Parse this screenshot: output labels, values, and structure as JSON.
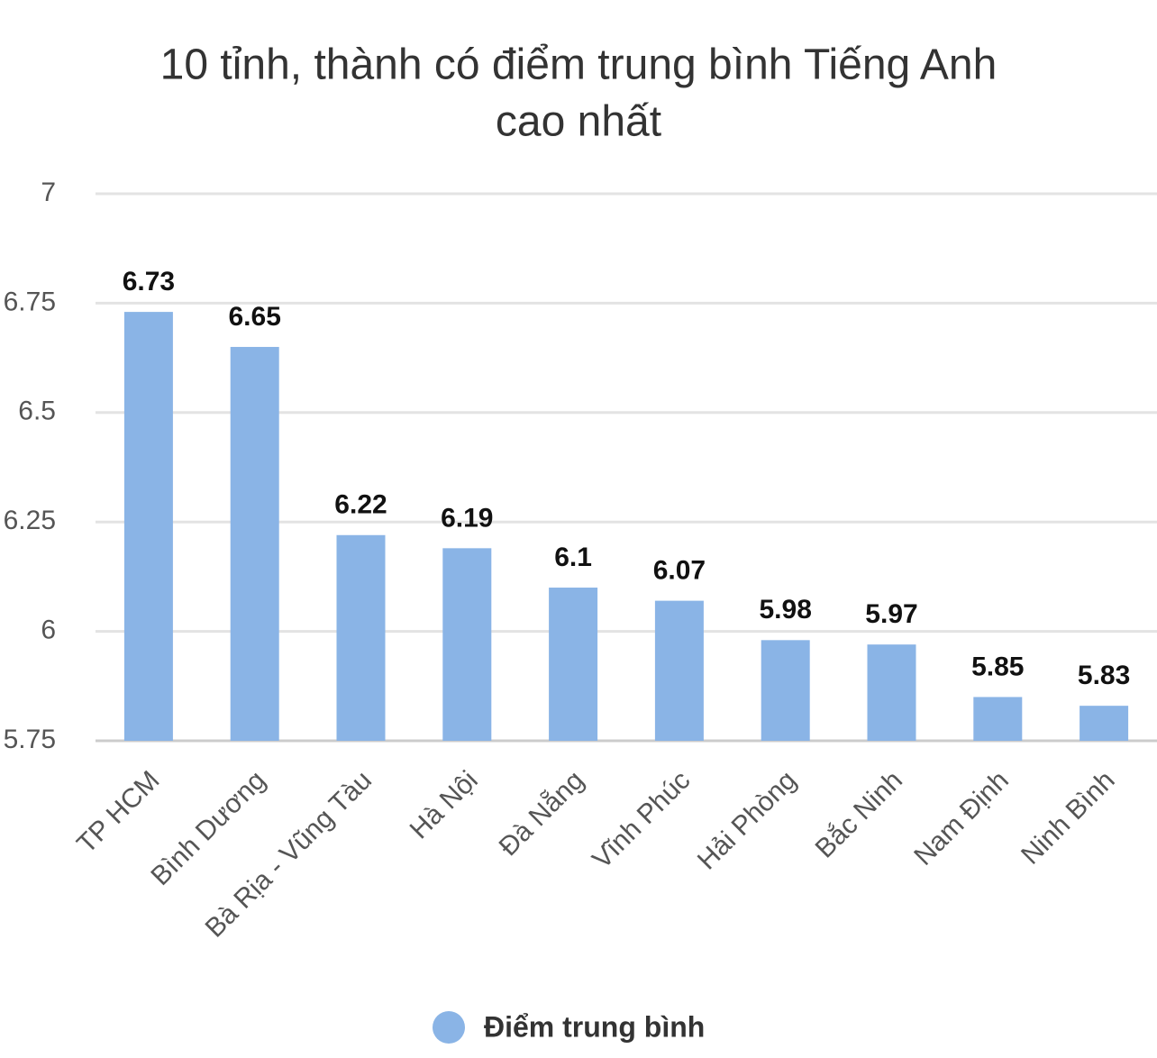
{
  "chart_data": {
    "type": "bar",
    "title": [
      "10 tỉnh, thành có điểm trung bình Tiếng Anh",
      "cao nhất"
    ],
    "categories": [
      "TP HCM",
      "Bình Dương",
      "Bà Rịa - Vũng Tàu",
      "Hà Nội",
      "Đà Nẵng",
      "Vĩnh Phúc",
      "Hải Phòng",
      "Bắc Ninh",
      "Nam Định",
      "Ninh Bình"
    ],
    "series": [
      {
        "name": "Điểm trung bình",
        "color": "#8ab4e6",
        "values": [
          6.73,
          6.65,
          6.22,
          6.19,
          6.1,
          6.07,
          5.98,
          5.97,
          5.85,
          5.83
        ]
      }
    ],
    "ylim": [
      5.75,
      7
    ],
    "yticks": [
      5.75,
      6,
      6.25,
      6.5,
      6.75,
      7
    ],
    "grid": true,
    "legend": "bottom"
  }
}
